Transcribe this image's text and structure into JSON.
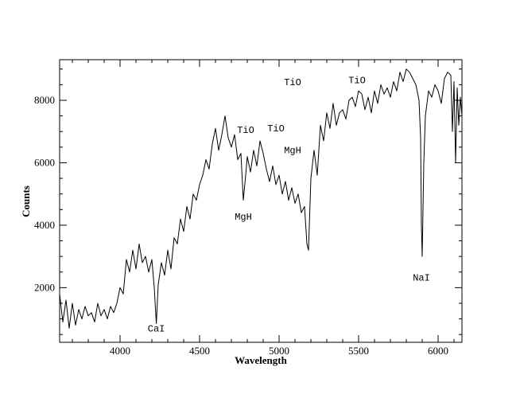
{
  "chart_data": {
    "type": "line",
    "title": "",
    "xlabel": "Wavelength",
    "ylabel": "Counts",
    "xlim": [
      3620,
      6150
    ],
    "ylim": [
      250,
      9300
    ],
    "grid": false,
    "legend": "none",
    "line_color": "#000000",
    "xticks": [
      {
        "value": 4000,
        "label": "4000"
      },
      {
        "value": 4500,
        "label": "4500"
      },
      {
        "value": 5000,
        "label": "5000"
      },
      {
        "value": 5500,
        "label": "5500"
      },
      {
        "value": 6000,
        "label": "6000"
      }
    ],
    "yticks": [
      {
        "value": 2000,
        "label": "2000"
      },
      {
        "value": 4000,
        "label": "4000"
      },
      {
        "value": 6000,
        "label": "6000"
      },
      {
        "value": 8000,
        "label": "8000"
      }
    ],
    "series": [
      {
        "x": [
          3620,
          3640,
          3660,
          3680,
          3700,
          3720,
          3740,
          3760,
          3780,
          3800,
          3820,
          3840,
          3860,
          3880,
          3900,
          3920,
          3940,
          3960,
          3980,
          4000,
          4020,
          4040,
          4060,
          4080,
          4100,
          4120,
          4140,
          4160,
          4180,
          4200,
          4215,
          4228,
          4240,
          4260,
          4280,
          4300,
          4320,
          4340,
          4360,
          4380,
          4400,
          4420,
          4440,
          4460,
          4480,
          4500,
          4520,
          4540,
          4560,
          4580,
          4600,
          4620,
          4640,
          4660,
          4680,
          4700,
          4720,
          4740,
          4760,
          4775,
          4790,
          4800,
          4820,
          4840,
          4860,
          4880,
          4900,
          4920,
          4940,
          4960,
          4980,
          5000,
          5020,
          5040,
          5060,
          5080,
          5100,
          5120,
          5140,
          5160,
          5175,
          5185,
          5200,
          5220,
          5240,
          5260,
          5280,
          5300,
          5320,
          5340,
          5360,
          5380,
          5400,
          5420,
          5440,
          5460,
          5480,
          5500,
          5520,
          5540,
          5560,
          5580,
          5600,
          5620,
          5640,
          5660,
          5680,
          5700,
          5720,
          5740,
          5760,
          5780,
          5800,
          5820,
          5840,
          5860,
          5880,
          5890,
          5895,
          5900,
          5910,
          5920,
          5940,
          5960,
          5980,
          6000,
          6020,
          6040,
          6060,
          6080,
          6090,
          6100,
          6110,
          6120,
          6130,
          6140,
          6150
        ],
        "values": [
          1800,
          900,
          1600,
          700,
          1500,
          800,
          1300,
          1000,
          1400,
          1100,
          1200,
          900,
          1500,
          1100,
          1300,
          1000,
          1400,
          1200,
          1500,
          2000,
          1800,
          2900,
          2500,
          3200,
          2600,
          3400,
          2800,
          3000,
          2500,
          2900,
          2000,
          850,
          2100,
          2800,
          2400,
          3200,
          2600,
          3600,
          3400,
          4200,
          3800,
          4600,
          4200,
          5000,
          4800,
          5300,
          5600,
          6100,
          5800,
          6600,
          7100,
          6400,
          6900,
          7500,
          6800,
          6500,
          6900,
          6100,
          6300,
          4800,
          5600,
          6200,
          5700,
          6400,
          5900,
          6700,
          6300,
          5800,
          5400,
          5900,
          5300,
          5600,
          5000,
          5400,
          4800,
          5200,
          4700,
          5000,
          4400,
          4600,
          3400,
          3200,
          5500,
          6400,
          5600,
          7200,
          6700,
          7600,
          7100,
          7900,
          7200,
          7600,
          7700,
          7400,
          8000,
          8100,
          7800,
          8300,
          8200,
          7700,
          8100,
          7600,
          8300,
          7900,
          8500,
          8200,
          8400,
          8100,
          8600,
          8300,
          8900,
          8600,
          9000,
          8900,
          8700,
          8500,
          8000,
          6800,
          4000,
          3000,
          6000,
          7500,
          8300,
          8100,
          8500,
          8300,
          7900,
          8700,
          8900,
          8800,
          7000,
          8600,
          6000,
          8400,
          7200,
          8100,
          7500
        ]
      }
    ],
    "annotations": [
      {
        "text": "CaI",
        "x": 4228,
        "y": 600
      },
      {
        "text": "MgH",
        "x": 4775,
        "y": 4180
      },
      {
        "text": "TiO",
        "x": 4790,
        "y": 6950
      },
      {
        "text": "TiO",
        "x": 4980,
        "y": 7000
      },
      {
        "text": "MgH",
        "x": 5085,
        "y": 6300
      },
      {
        "text": "TiO",
        "x": 5085,
        "y": 8480
      },
      {
        "text": "TiO",
        "x": 5490,
        "y": 8550
      },
      {
        "text": "NaI",
        "x": 5895,
        "y": 2220
      }
    ]
  }
}
